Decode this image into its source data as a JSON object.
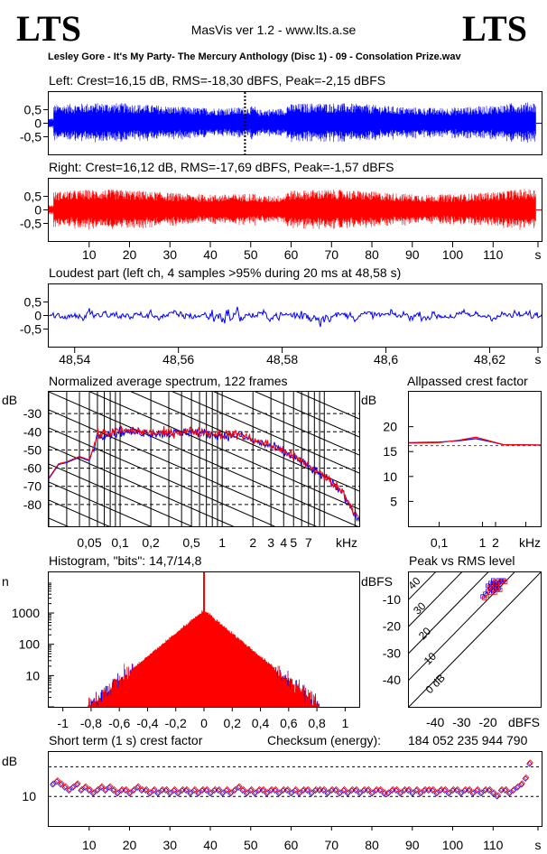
{
  "header": {
    "logo_left": "LTS",
    "logo_right": "LTS",
    "app_title": "MasVis ver 1.2 - www.lts.a.se",
    "track": "Lesley Gore - It's My Party- The Mercury Anthology (Disc 1) - 09 - Consolation Prize.wav"
  },
  "colors": {
    "left": "#0000ff",
    "right": "#ff0000",
    "grid": "#000000"
  },
  "chart_data": [
    {
      "type": "line",
      "title": "Left: Crest=16,15 dB, RMS=-18,30 dBFS, Peak=-2,15 dBFS",
      "channel": "left",
      "y_ticks": [
        "0,5",
        "0",
        "-0,5"
      ],
      "ylim": [
        -1,
        1
      ],
      "marker_x": 48.58,
      "duration_s": 122
    },
    {
      "type": "line",
      "title": "Right: Crest=16,12 dB, RMS=-17,69 dBFS, Peak=-1,57 dBFS",
      "channel": "right",
      "y_ticks": [
        "0,5",
        "0",
        "-0,5"
      ],
      "x_ticks": [
        "10",
        "20",
        "30",
        "40",
        "50",
        "60",
        "70",
        "80",
        "90",
        "100",
        "110",
        "s"
      ],
      "ylim": [
        -1,
        1
      ],
      "duration_s": 122
    },
    {
      "type": "line",
      "title": "Loudest part (left  ch, 4 samples >95% during 20 ms at 48,58 s)",
      "y_ticks": [
        "0,5",
        "0",
        "-0,5"
      ],
      "x_ticks": [
        "48,54",
        "48,56",
        "48,58",
        "48,6",
        "48,62",
        "s"
      ],
      "xlim": [
        48.535,
        48.63
      ],
      "ylim": [
        -1,
        1
      ]
    },
    {
      "type": "line",
      "title": "Normalized average spectrum, 122 frames",
      "ylabel": "dB",
      "y_ticks": [
        "-30",
        "-40",
        "-50",
        "-60",
        "-70",
        "-80"
      ],
      "x_ticks": [
        "0,05",
        "0,1",
        "0,2",
        "0,5",
        "1",
        "2",
        "3",
        "4",
        "5",
        "7",
        "kHz"
      ],
      "xlim": [
        0.02,
        22
      ],
      "ylim": [
        -92,
        -18
      ],
      "curve_khz": [
        0.02,
        0.025,
        0.03,
        0.04,
        0.05,
        0.06,
        0.08,
        0.1,
        0.15,
        0.2,
        0.3,
        0.5,
        0.7,
        1,
        1.5,
        2,
        3,
        4,
        5,
        7,
        10,
        15,
        22
      ],
      "curve_db": [
        -66,
        -58,
        -57,
        -54,
        -56,
        -42,
        -41,
        -40,
        -40,
        -41,
        -41,
        -40,
        -41,
        -42,
        -42,
        -45,
        -48,
        -51,
        -54,
        -59,
        -65,
        -73,
        -89
      ]
    },
    {
      "type": "line",
      "title": "Allpassed crest factor",
      "ylabel": "dB",
      "y_ticks": [
        "20",
        "15",
        "10",
        "5"
      ],
      "x_ticks": [
        "0,1",
        "1",
        "2",
        "kHz"
      ],
      "xlim": [
        0.02,
        22
      ],
      "ylim": [
        0,
        27
      ],
      "reference_db": 16.2,
      "series": [
        {
          "name": "left",
          "x": [
            0.02,
            0.1,
            0.3,
            0.7,
            1.5,
            3,
            22
          ],
          "values": [
            16.8,
            16.9,
            17.2,
            17.6,
            17.0,
            16.4,
            16.3
          ]
        },
        {
          "name": "right",
          "x": [
            0.02,
            0.1,
            0.3,
            0.7,
            1.5,
            3,
            22
          ],
          "values": [
            16.7,
            16.8,
            17.3,
            17.9,
            17.1,
            16.4,
            16.3
          ]
        }
      ]
    },
    {
      "type": "line",
      "title": "Histogram, \"bits\": 14,7/14,8",
      "ylabel": "n",
      "y_ticks": [
        "1000",
        "100",
        "10"
      ],
      "x_ticks": [
        "-1",
        "-0,8",
        "-0,6",
        "-0,4",
        "-0,2",
        "0",
        "0,2",
        "0,4",
        "0,6",
        "0,8",
        "1"
      ],
      "xlim": [
        -1.1,
        1.1
      ],
      "ylim_log10": [
        0,
        4.3
      ],
      "peak_log10": 3.05,
      "edge_amplitude": 0.82
    },
    {
      "type": "scatter",
      "title": "Peak vs RMS level",
      "ylabel": "dBFS",
      "xlabel": "dBFS",
      "y_ticks": [
        "-10",
        "-20",
        "-30",
        "-40"
      ],
      "x_ticks": [
        "-40",
        "-30",
        "-20"
      ],
      "diag_labels": [
        "40",
        "30",
        "20",
        "10",
        "0 dB"
      ],
      "xlim": [
        -50,
        0
      ],
      "ylim": [
        -50,
        0
      ],
      "points_rms": [
        -18,
        -17,
        -19,
        -16,
        -20,
        -18,
        -17,
        -15,
        -19,
        -21,
        -16,
        -18,
        -14,
        -17,
        -20,
        -19,
        -16,
        -18,
        -22,
        -17
      ],
      "points_peak": [
        -5,
        -4,
        -6,
        -3,
        -7,
        -4,
        -5,
        -3,
        -6,
        -8,
        -4,
        -7,
        -3,
        -6,
        -5,
        -4,
        -6,
        -3,
        -9,
        -5
      ]
    },
    {
      "type": "scatter",
      "title": "Short term (1 s) crest factor",
      "checksum_label": "Checksum (energy):",
      "checksum_value": "184 052 235 944 790",
      "ylabel": "dB",
      "y_ticks": [
        "10"
      ],
      "x_ticks": [
        "10",
        "20",
        "30",
        "40",
        "50",
        "60",
        "70",
        "80",
        "90",
        "100",
        "110",
        "s"
      ],
      "xlim": [
        0,
        122
      ],
      "ylim": [
        0,
        25
      ],
      "dashed_lines": [
        10,
        20
      ],
      "values": [
        14,
        15,
        14,
        13,
        12,
        13,
        14,
        12,
        13,
        12,
        11,
        12,
        13,
        12,
        13,
        12,
        11,
        12,
        12,
        11,
        12,
        13,
        12,
        12,
        11,
        12,
        11,
        12,
        12,
        11,
        12,
        11,
        12,
        12,
        11,
        12,
        11,
        12,
        12,
        11,
        12,
        12,
        11,
        12,
        11,
        12,
        13,
        12,
        11,
        12,
        11,
        12,
        12,
        11,
        12,
        12,
        11,
        12,
        12,
        11,
        12,
        11,
        12,
        12,
        11,
        12,
        12,
        12,
        11,
        12,
        12,
        11,
        12,
        11,
        12,
        12,
        11,
        12,
        12,
        11,
        12,
        12,
        11,
        11,
        12,
        12,
        11,
        12,
        12,
        11,
        12,
        11,
        12,
        12,
        12,
        11,
        12,
        12,
        11,
        12,
        12,
        11,
        12,
        12,
        11,
        12,
        11,
        12,
        12,
        11,
        10,
        12,
        12,
        11,
        12,
        13,
        14,
        16,
        21
      ]
    }
  ]
}
